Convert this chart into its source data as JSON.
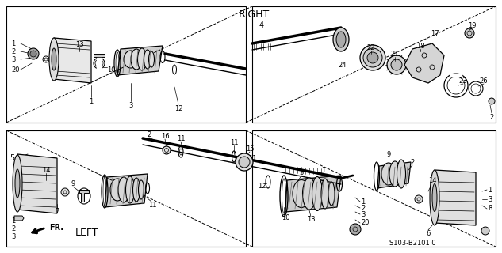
{
  "background_color": "#ffffff",
  "diagram_color": "#000000",
  "right_label": "RIGHT",
  "left_label": "LEFT",
  "fr_label": "FR.",
  "diagram_code": "S103-B2101 0",
  "figsize": [
    6.33,
    3.2
  ],
  "dpi": 100
}
